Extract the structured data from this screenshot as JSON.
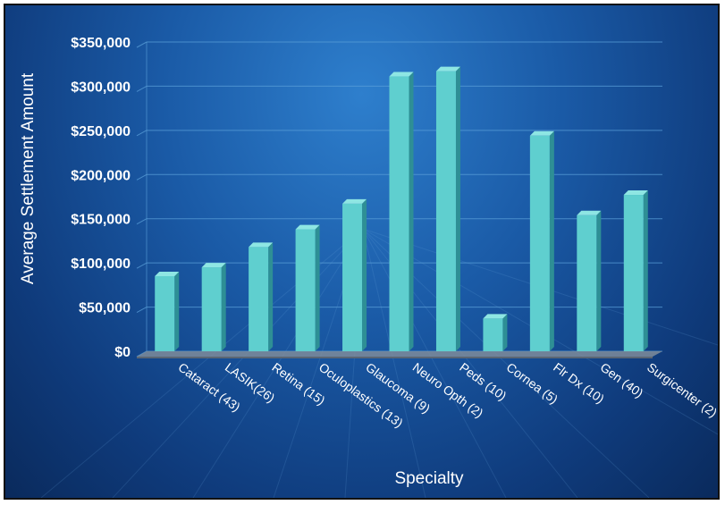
{
  "chart_data": {
    "type": "bar",
    "title": "",
    "xlabel": "Specialty",
    "ylabel": "Average Settlement Amount",
    "categories": [
      "Cataract (43)",
      "LASIK(26)",
      "Retina (15)",
      "Oculoplastics (13)",
      "Glaucoma (9)",
      "Neuro Opth (2)",
      "Peds (10)",
      "Cornea (5)",
      "Flr Dx (10)",
      "Gen (40)",
      "Surgicenter (2)"
    ],
    "values": [
      85000,
      95000,
      118000,
      138000,
      167000,
      311000,
      317000,
      37000,
      244000,
      154000,
      177000
    ],
    "ylim": [
      0,
      350000
    ],
    "yticks": [
      0,
      50000,
      100000,
      150000,
      200000,
      250000,
      300000,
      350000
    ],
    "ytick_labels": [
      "$0",
      "$50,000",
      "$100,000",
      "$150,000",
      "$200,000",
      "$250,000",
      "$300,000",
      "$350,000"
    ],
    "grid": true,
    "colors": {
      "bar_front": "#5fcfcf",
      "bar_side": "#2e8f95",
      "bar_top": "#8ee6e3",
      "grid": "#5a9fd8",
      "floor": "#7f8c9a",
      "background": "#1a5aa6"
    }
  }
}
